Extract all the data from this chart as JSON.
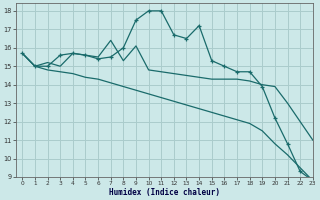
{
  "xlabel": "Humidex (Indice chaleur)",
  "bg_color": "#cce8e8",
  "grid_color": "#aacccc",
  "line_color": "#1a6b6b",
  "xlim": [
    -0.5,
    23
  ],
  "ylim": [
    9,
    18.4
  ],
  "line1_x": [
    0,
    1,
    2,
    3,
    4,
    5,
    6,
    7,
    8,
    9,
    10,
    11,
    12,
    13,
    14,
    15,
    16,
    17,
    18,
    19,
    20,
    21,
    22,
    23
  ],
  "line1_y": [
    15.7,
    15.0,
    15.0,
    15.6,
    15.7,
    15.6,
    15.4,
    15.5,
    16.0,
    17.5,
    18.0,
    18.0,
    16.7,
    16.5,
    17.2,
    15.3,
    15.0,
    14.7,
    14.7,
    13.9,
    12.2,
    10.8,
    9.3,
    8.8
  ],
  "line2_x": [
    0,
    1,
    2,
    3,
    4,
    5,
    6,
    7,
    8,
    9,
    10,
    11,
    12,
    13,
    14,
    15,
    16,
    17,
    18,
    19,
    20,
    21,
    22,
    23
  ],
  "line2_y": [
    15.7,
    15.0,
    15.2,
    15.0,
    15.7,
    15.6,
    15.5,
    16.4,
    15.3,
    16.1,
    14.8,
    14.7,
    14.6,
    14.5,
    14.4,
    14.3,
    14.3,
    14.3,
    14.2,
    14.0,
    13.9,
    13.0,
    12.0,
    11.0
  ],
  "line3_x": [
    0,
    1,
    2,
    3,
    4,
    5,
    6,
    7,
    8,
    9,
    10,
    11,
    12,
    13,
    14,
    15,
    16,
    17,
    18,
    19,
    20,
    21,
    22,
    23
  ],
  "line3_y": [
    15.7,
    15.0,
    14.8,
    14.7,
    14.6,
    14.4,
    14.3,
    14.1,
    13.9,
    13.7,
    13.5,
    13.3,
    13.1,
    12.9,
    12.7,
    12.5,
    12.3,
    12.1,
    11.9,
    11.5,
    10.8,
    10.2,
    9.5,
    8.8
  ],
  "yticks": [
    9,
    10,
    11,
    12,
    13,
    14,
    15,
    16,
    17,
    18
  ],
  "xticks": [
    0,
    1,
    2,
    3,
    4,
    5,
    6,
    7,
    8,
    9,
    10,
    11,
    12,
    13,
    14,
    15,
    16,
    17,
    18,
    19,
    20,
    21,
    22,
    23
  ]
}
